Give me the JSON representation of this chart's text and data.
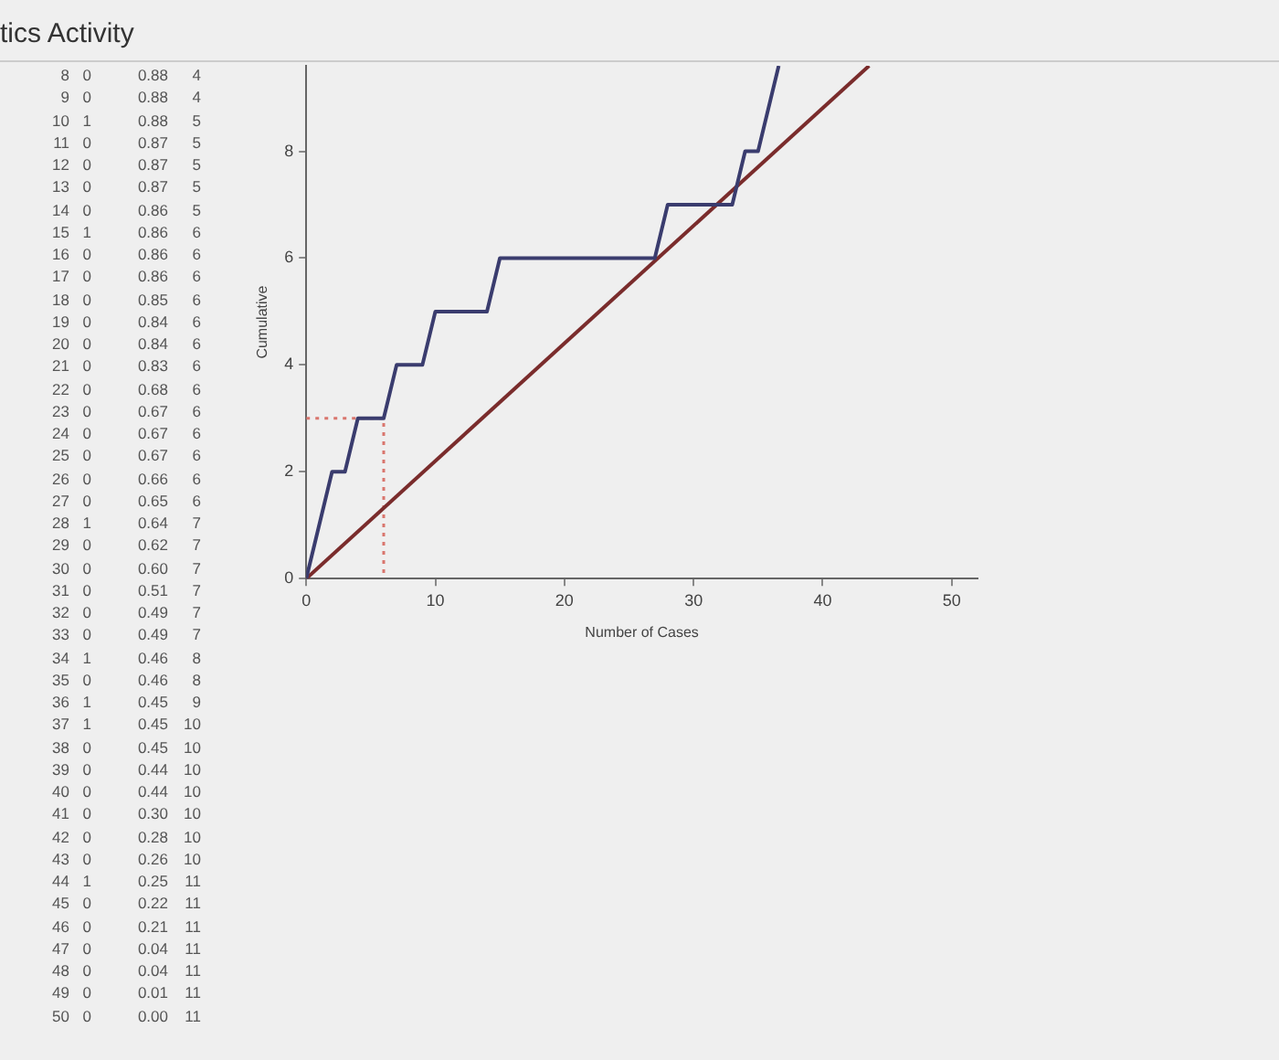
{
  "chart_data": {
    "type": "line",
    "title": "tics Activity",
    "xlabel": "Number of Cases",
    "ylabel": "Cumulative",
    "xlim": [
      0,
      52
    ],
    "xticks": [
      0,
      10,
      20,
      30,
      40,
      50
    ],
    "ylim": [
      0,
      9.6
    ],
    "yticks": [
      0,
      2,
      4,
      6,
      8
    ],
    "grid": false,
    "legend": false,
    "marker": "none",
    "series": [
      {
        "color": "#3a3c6e",
        "line_style": "solid",
        "x": [
          0,
          2,
          3,
          4,
          6,
          7,
          9,
          10,
          14,
          15,
          27,
          28,
          33,
          34,
          35,
          36,
          36.6
        ],
        "values": [
          0,
          2,
          2,
          3,
          3,
          4,
          4,
          5,
          5,
          6,
          6,
          7,
          7,
          8,
          8,
          9,
          9.6
        ]
      },
      {
        "color": "#7a2c2c",
        "line_style": "solid",
        "x": [
          0,
          43.6
        ],
        "values": [
          0,
          9.6
        ]
      },
      {
        "color": "#d9766e",
        "line_style": "dotted",
        "x": [
          0,
          6,
          6
        ],
        "values": [
          3,
          3,
          0
        ]
      }
    ],
    "annotations": [
      "8 0 0.88 4",
      "9 0 0.88 4",
      "10 1 0.88 5",
      "11 0 0.87 5",
      "12 0 0.87 5",
      "13 0 0.87 5",
      "14 0 0.86 5",
      "15 1 0.86 6",
      "16 0 0.86 6",
      "17 0 0.86 6",
      "18 0 0.85 6",
      "19 0 0.84 6",
      "20 0 0.84 6",
      "21 0 0.83 6",
      "22 0 0.68 6",
      "23 0 0.67 6",
      "24 0 0.67 6",
      "25 0 0.67 6",
      "26 0 0.66 6",
      "27 0 0.65 6",
      "28 1 0.64 7",
      "29 0 0.62 7",
      "30 0 0.60 7",
      "31 0 0.51 7",
      "32 0 0.49 7",
      "33 0 0.49 7",
      "34 1 0.46 8",
      "35 0 0.46 8",
      "36 1 0.45 9",
      "37 1 0.45 10",
      "38 0 0.45 10",
      "39 0 0.44 10",
      "40 0 0.44 10",
      "41 0 0.30 10",
      "42 0 0.28 10",
      "43 0 0.26 10",
      "44 1 0.25 11",
      "45 0 0.22 11",
      "46 0 0.21 11",
      "47 0 0.04 11",
      "48 0 0.04 11",
      "49 0 0.01 11",
      "50 0 0.00 11"
    ]
  }
}
